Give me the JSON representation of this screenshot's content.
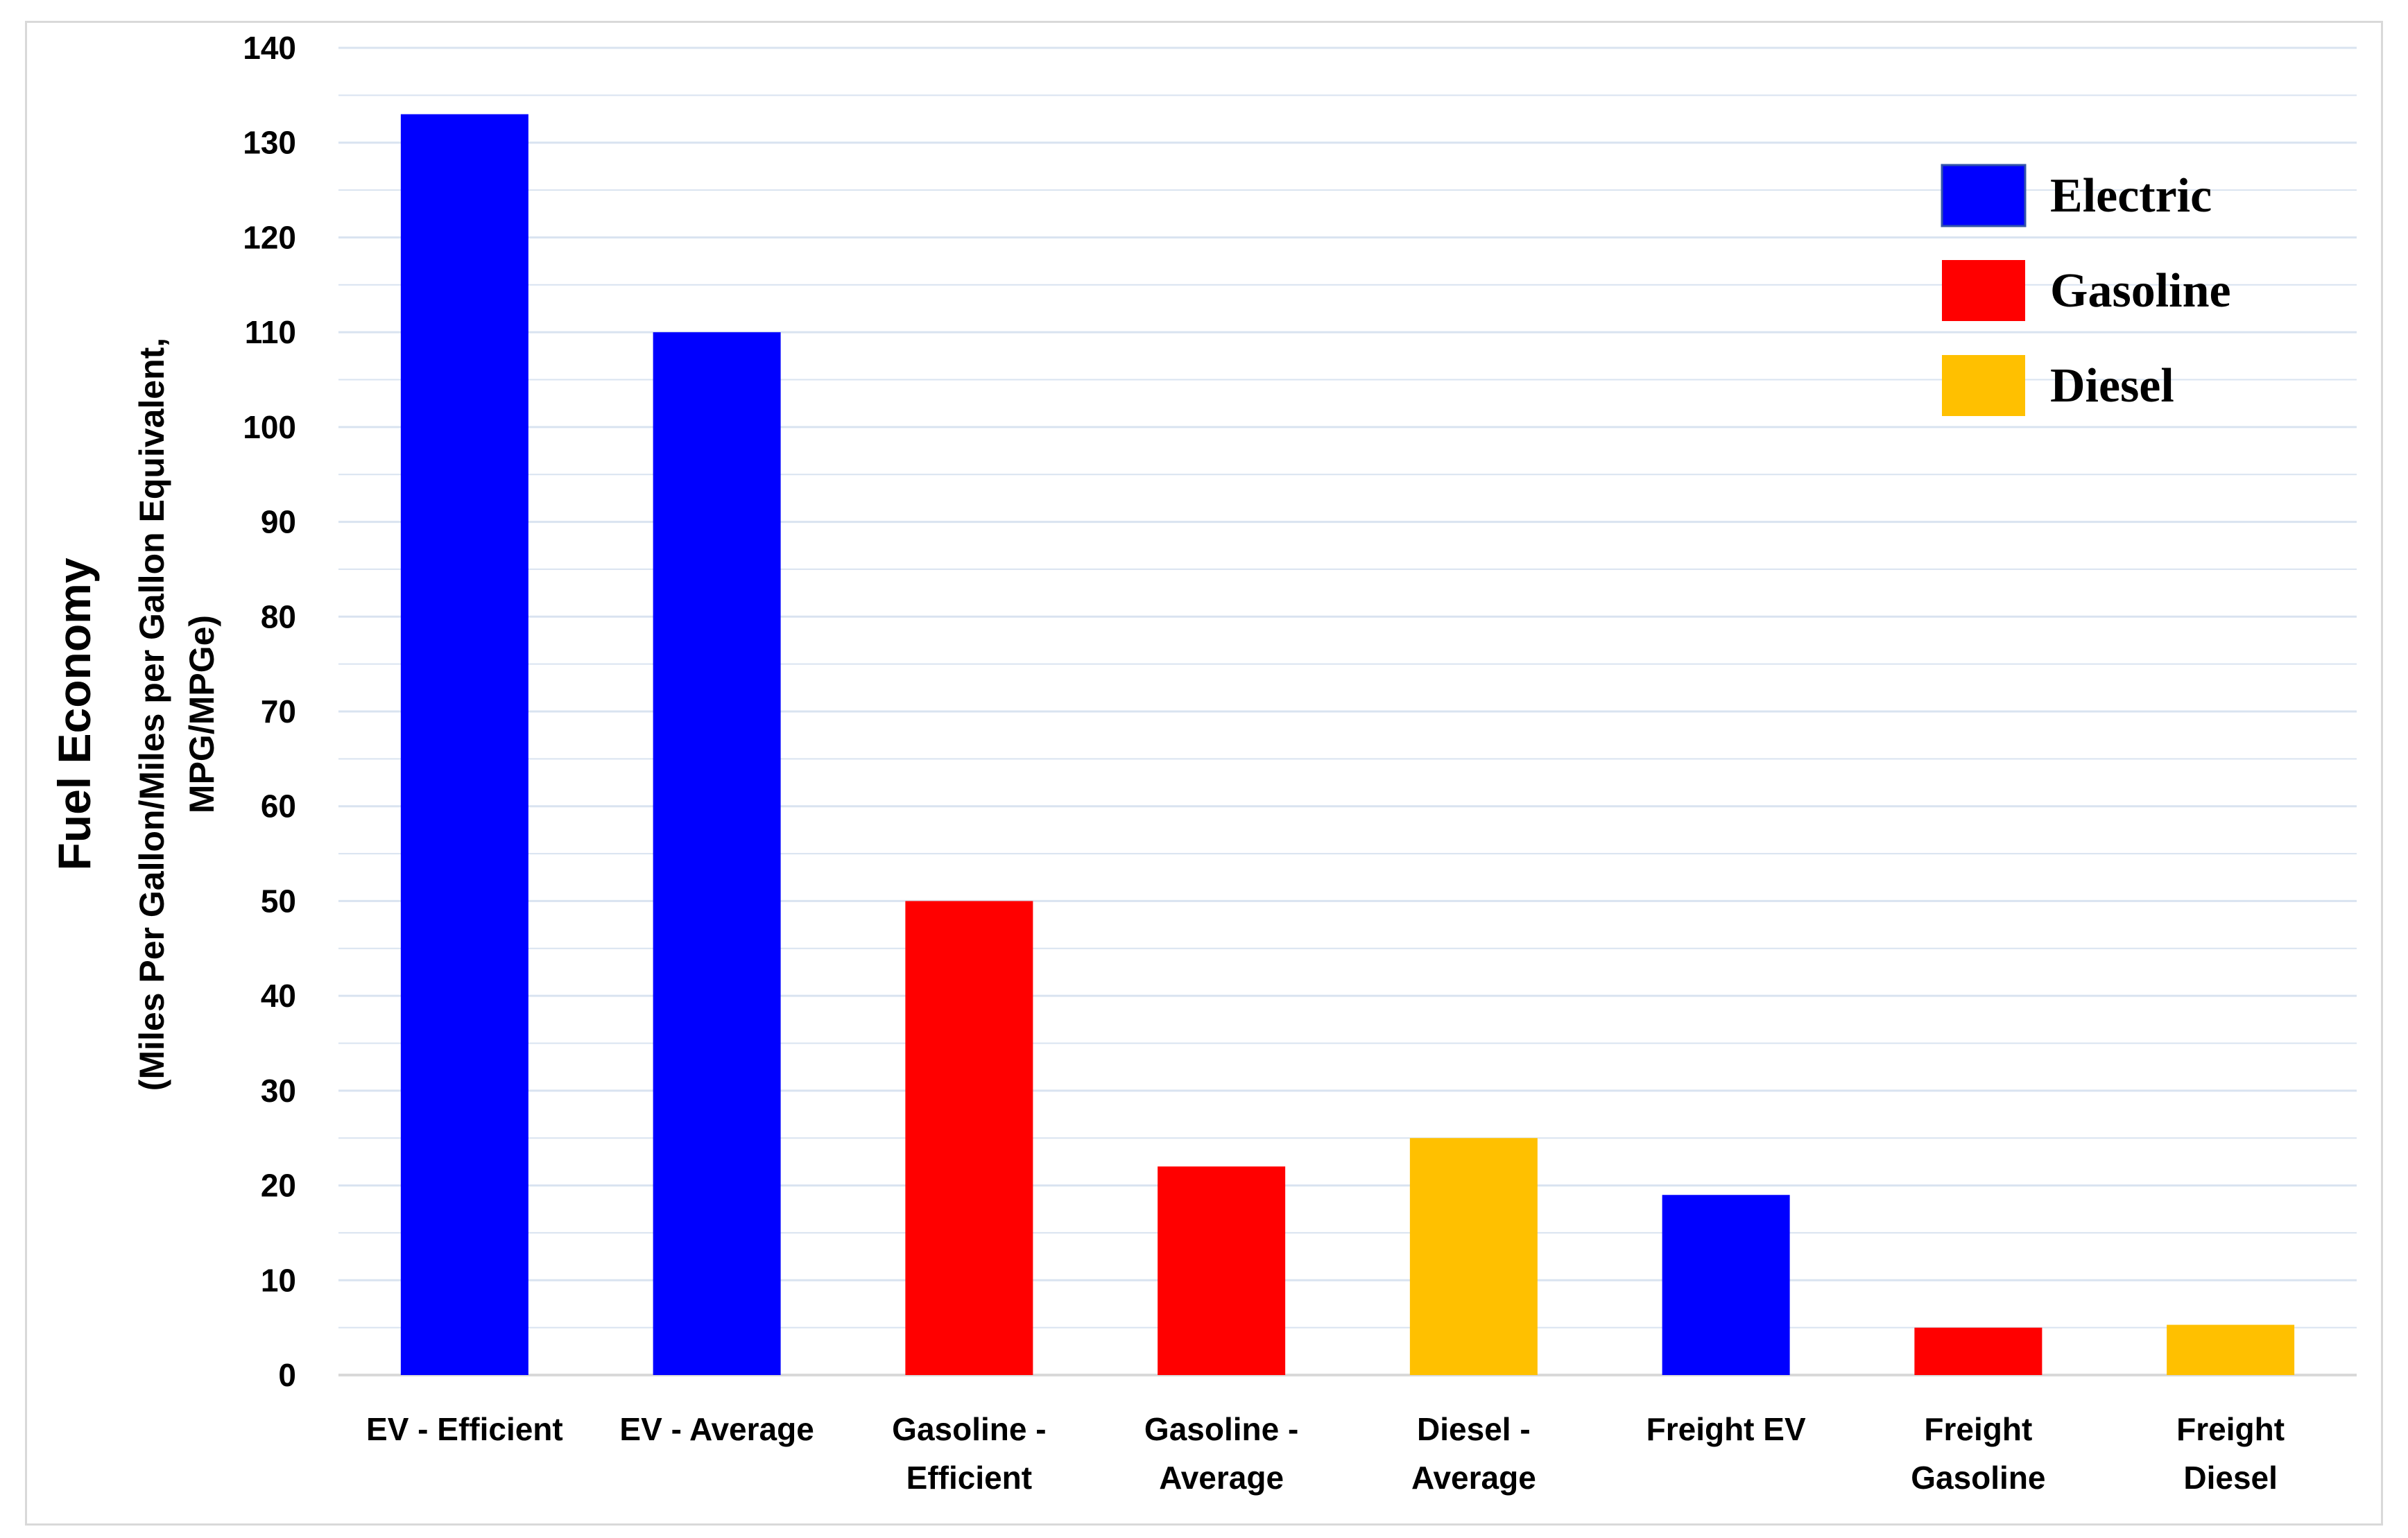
{
  "chart_data": {
    "type": "bar",
    "categories": [
      [
        "EV - Efficient"
      ],
      [
        "EV - Average"
      ],
      [
        "Gasoline -",
        "Efficient"
      ],
      [
        "Gasoline -",
        "Average"
      ],
      [
        "Diesel -",
        "Average"
      ],
      [
        "Freight EV"
      ],
      [
        "Freight",
        "Gasoline"
      ],
      [
        "Freight",
        "Diesel"
      ]
    ],
    "values": [
      133,
      110,
      50,
      22,
      25,
      19,
      5,
      5.3
    ],
    "bar_fuel": [
      "Electric",
      "Electric",
      "Gasoline",
      "Gasoline",
      "Diesel",
      "Electric",
      "Gasoline",
      "Diesel"
    ],
    "ylabel": "Fuel Economy",
    "ylabel_sub": [
      "(Miles Per Gallon/Miles per Gallon Equivalent,",
      "MPG/MPGe)"
    ],
    "xlabel": "",
    "ylim": [
      0,
      140
    ],
    "ytick_step": 10,
    "grid": true,
    "legend": {
      "placement": "top-right",
      "entries": [
        {
          "name": "Electric",
          "color": "#0000ff"
        },
        {
          "name": "Gasoline",
          "color": "#ff0000"
        },
        {
          "name": "Diesel",
          "color": "#ffc000"
        }
      ]
    },
    "colors": {
      "Electric": "#0000ff",
      "Gasoline": "#ff0000",
      "Diesel": "#ffc000",
      "grid": "#d9e3f0",
      "axis": "#d9d9d9"
    }
  }
}
